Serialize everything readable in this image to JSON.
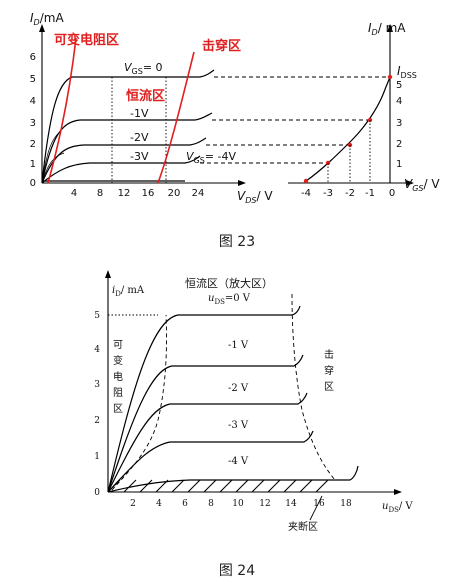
{
  "figure23": {
    "caption": "图 23",
    "left": {
      "y_axis_label": "I",
      "y_axis_sub": "D",
      "y_axis_unit": "/mA",
      "x_axis_label": "V",
      "x_axis_sub": "DS",
      "x_axis_unit": "/ V",
      "y_ticks": [
        "0",
        "1",
        "2",
        "3",
        "4",
        "5",
        "6"
      ],
      "x_ticks": [
        "4",
        "8",
        "12",
        "16",
        "20",
        "24"
      ],
      "region_variable": "可变电阻区",
      "region_constant": "恒流区",
      "region_breakdown": "击穿区",
      "curve_labels": [
        "V",
        "GS",
        "= 0",
        "-1V",
        "-2V",
        "-3V",
        "V",
        "GS",
        "= -4V"
      ]
    },
    "right": {
      "y_axis_label": "I",
      "y_axis_sub": "D",
      "y_axis_unit": "/ mA",
      "x_axis_label": "V",
      "x_axis_sub": "GS",
      "x_axis_unit": "/ V",
      "x_ticks": [
        "-4",
        "-3",
        "-2",
        "-1",
        "0"
      ],
      "y_ticks": [
        "1",
        "2",
        "3",
        "4",
        "5"
      ],
      "idss_label": "I",
      "idss_sub": "DSS"
    }
  },
  "figure24": {
    "caption": "图 24",
    "y_axis_label": "i",
    "y_axis_sub": "D",
    "y_axis_unit": "/ mA",
    "x_axis_label": "u",
    "x_axis_sub": "DS",
    "x_axis_unit": "/ V",
    "y_ticks": [
      "0",
      "1",
      "2",
      "3",
      "4",
      "5"
    ],
    "x_ticks": [
      "2",
      "4",
      "6",
      "8",
      "10",
      "12",
      "14",
      "16",
      "18"
    ],
    "region_top": "恒流区（放大区）",
    "uds_label": "u",
    "uds_sub": "DS",
    "uds_value": "=0 V",
    "curve_labels": [
      "-1 V",
      "-2 V",
      "-3 V",
      "-4 V"
    ],
    "left_region_chars": [
      "可",
      "变",
      "电",
      "阻",
      "区"
    ],
    "right_region_chars": [
      "击",
      "穿",
      "区"
    ],
    "pinchoff_label": "夹断区"
  },
  "chart_data": [
    {
      "type": "line",
      "title": "",
      "xlabel": "VDS / V",
      "ylabel": "ID / mA",
      "xlim": [
        0,
        28
      ],
      "ylim": [
        0,
        6
      ],
      "series": [
        {
          "name": "VGS = 0",
          "x": [
            0,
            4,
            8,
            12,
            16,
            20,
            24
          ],
          "y": [
            0,
            5.2,
            5.3,
            5.3,
            5.3,
            5.3,
            5.5
          ]
        },
        {
          "name": "-1V",
          "x": [
            0,
            4,
            8,
            12,
            16,
            20
          ],
          "y": [
            0,
            3.0,
            3.05,
            3.05,
            3.05,
            3.1
          ]
        },
        {
          "name": "-2V",
          "x": [
            0,
            4,
            8,
            12,
            16,
            20
          ],
          "y": [
            0,
            1.8,
            1.85,
            1.85,
            1.85,
            1.9
          ]
        },
        {
          "name": "-3V",
          "x": [
            0,
            4,
            8,
            12,
            16,
            20
          ],
          "y": [
            0,
            0.8,
            0.85,
            0.85,
            0.85,
            0.9
          ]
        },
        {
          "name": "VGS = -4V",
          "x": [
            0,
            4,
            8,
            12,
            16,
            20
          ],
          "y": [
            0,
            0,
            0,
            0,
            0,
            0
          ]
        }
      ]
    },
    {
      "type": "line",
      "title": "",
      "xlabel": "VGS / V",
      "ylabel": "ID / mA",
      "xlim": [
        -4.5,
        0.5
      ],
      "ylim": [
        0,
        6
      ],
      "series": [
        {
          "name": "transfer",
          "x": [
            -4,
            -3,
            -2,
            -1,
            0
          ],
          "y": [
            0,
            0.9,
            1.9,
            3.0,
            5.2
          ]
        }
      ]
    },
    {
      "type": "line",
      "title": "",
      "xlabel": "uDS / V",
      "ylabel": "iD / mA",
      "xlim": [
        0,
        20
      ],
      "ylim": [
        0,
        5.5
      ],
      "series": [
        {
          "name": "=0 V",
          "x": [
            0,
            4,
            6,
            14
          ],
          "y": [
            0,
            4.6,
            5.0,
            5.0
          ]
        },
        {
          "name": "-1 V",
          "x": [
            0,
            4,
            6,
            14
          ],
          "y": [
            0,
            3.4,
            3.6,
            3.6
          ]
        },
        {
          "name": "-2 V",
          "x": [
            0,
            4,
            6,
            14
          ],
          "y": [
            0,
            2.3,
            2.5,
            2.5
          ]
        },
        {
          "name": "-3 V",
          "x": [
            0,
            4,
            6,
            14
          ],
          "y": [
            0,
            1.3,
            1.45,
            1.45
          ]
        },
        {
          "name": "-4 V",
          "x": [
            0,
            4,
            6,
            18
          ],
          "y": [
            0,
            0.05,
            0.1,
            0.3
          ]
        }
      ]
    }
  ]
}
